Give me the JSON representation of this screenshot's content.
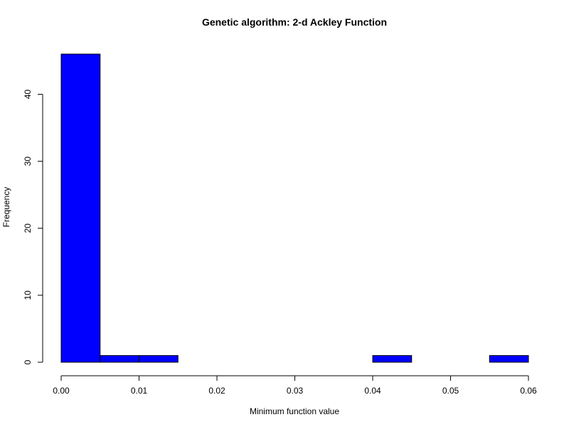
{
  "chart_data": {
    "type": "bar",
    "subtype": "histogram",
    "title": "Genetic algorithm: 2-d Ackley Function",
    "xlabel": "Minimum function value",
    "ylabel": "Frequency",
    "bins": [
      {
        "start": 0.0,
        "end": 0.005,
        "count": 46
      },
      {
        "start": 0.005,
        "end": 0.01,
        "count": 1
      },
      {
        "start": 0.01,
        "end": 0.015,
        "count": 1
      },
      {
        "start": 0.015,
        "end": 0.02,
        "count": 0
      },
      {
        "start": 0.02,
        "end": 0.025,
        "count": 0
      },
      {
        "start": 0.025,
        "end": 0.03,
        "count": 0
      },
      {
        "start": 0.03,
        "end": 0.035,
        "count": 0
      },
      {
        "start": 0.035,
        "end": 0.04,
        "count": 0
      },
      {
        "start": 0.04,
        "end": 0.045,
        "count": 1
      },
      {
        "start": 0.045,
        "end": 0.05,
        "count": 0
      },
      {
        "start": 0.05,
        "end": 0.055,
        "count": 0
      },
      {
        "start": 0.055,
        "end": 0.06,
        "count": 1
      }
    ],
    "xlim": [
      0,
      0.06
    ],
    "ylim": [
      0,
      46
    ],
    "x_ticks": [
      "0.00",
      "0.01",
      "0.02",
      "0.03",
      "0.04",
      "0.05",
      "0.06"
    ],
    "y_ticks": [
      "0",
      "10",
      "20",
      "30",
      "40"
    ],
    "bar_color": "#0000ff",
    "bar_border_color": "#000000",
    "grid": false,
    "legend": "none"
  }
}
